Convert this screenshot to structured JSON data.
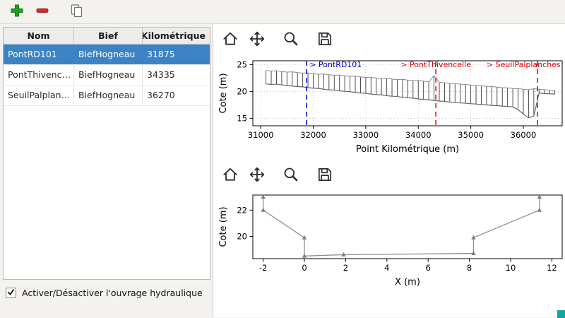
{
  "main_toolbar": {
    "buttons": [
      {
        "name": "add",
        "icon": "plus-icon",
        "color": "#1ea11e"
      },
      {
        "name": "remove",
        "icon": "minus-icon",
        "color": "#d22b2b"
      },
      {
        "name": "copy",
        "icon": "copy-icon"
      }
    ]
  },
  "table": {
    "columns": [
      "Nom",
      "Bief",
      "Point Kilométrique"
    ],
    "rows": [
      {
        "nom": "PontRD101",
        "bief": "BiefHogneau",
        "pk": "31875",
        "selected": true
      },
      {
        "nom": "PontThivencelle",
        "bief": "BiefHogneau",
        "pk": "34335",
        "selected": false
      },
      {
        "nom": "SeuilPalplanches",
        "bief": "BiefHogneau",
        "pk": "36270",
        "selected": false
      }
    ],
    "selection_color": "#3c83c6"
  },
  "checkbox": {
    "label": "Activer/Désactiver l'ouvrage hydraulique",
    "checked": true
  },
  "mpl_toolbar": {
    "icons": [
      "home-icon",
      "pan-icon",
      "zoom-icon",
      "save-icon"
    ]
  },
  "chart_data": [
    {
      "type": "line",
      "name": "longitudinal-profile",
      "xlabel": "Point Kilométrique (m)",
      "ylabel": "Cote (m)",
      "xlim": [
        30850,
        36740
      ],
      "ylim": [
        13.6,
        25.7
      ],
      "xticks": [
        31000,
        32000,
        33000,
        34000,
        35000,
        36000
      ],
      "yticks": [
        15,
        20,
        25
      ],
      "grid": true,
      "x": [
        31100,
        31200,
        31300,
        31400,
        31500,
        31600,
        31700,
        31800,
        31900,
        32000,
        32100,
        32200,
        32300,
        32400,
        32500,
        32600,
        32700,
        32800,
        32900,
        33000,
        33100,
        33200,
        33300,
        33400,
        33500,
        33600,
        33700,
        33800,
        33900,
        34000,
        34100,
        34200,
        34300,
        34400,
        34500,
        34600,
        34700,
        34800,
        34900,
        35000,
        35100,
        35200,
        35300,
        35400,
        35500,
        35600,
        35700,
        35800,
        35900,
        36000,
        36100,
        36200,
        36300,
        36400,
        36500,
        36600
      ],
      "top": [
        23.9,
        23.8,
        23.85,
        23.7,
        23.6,
        23.65,
        23.5,
        23.4,
        23.45,
        23.3,
        23.2,
        23.25,
        23.1,
        23.0,
        23.05,
        22.9,
        22.8,
        22.85,
        22.7,
        22.6,
        22.65,
        22.5,
        22.4,
        22.45,
        22.3,
        22.2,
        22.25,
        22.1,
        22.0,
        22.05,
        21.9,
        21.8,
        22.9,
        21.7,
        21.6,
        21.5,
        21.45,
        21.35,
        21.3,
        21.2,
        21.1,
        21.05,
        20.95,
        20.9,
        20.8,
        20.7,
        20.65,
        20.55,
        20.5,
        20.4,
        20.3,
        20.5,
        20.4,
        20.3,
        20.25,
        20.2
      ],
      "bottom": [
        21.4,
        21.3,
        21.35,
        21.2,
        21.1,
        21.0,
        20.9,
        20.85,
        20.7,
        20.6,
        20.55,
        20.4,
        20.3,
        20.25,
        20.1,
        20.0,
        19.95,
        19.8,
        19.7,
        19.65,
        19.5,
        19.4,
        19.35,
        19.2,
        19.1,
        19.05,
        18.9,
        18.8,
        18.75,
        18.6,
        18.5,
        18.45,
        18.3,
        18.2,
        18.15,
        18.0,
        17.95,
        17.85,
        17.8,
        17.7,
        17.65,
        17.55,
        17.5,
        17.4,
        17.35,
        17.25,
        17.2,
        17.1,
        16.6,
        15.8,
        15.1,
        15.4,
        19.7,
        19.6,
        19.55,
        19.5
      ],
      "annotations": [
        {
          "label": "> PontRD101",
          "x": 31875,
          "color": "#0000dd",
          "style": "dashed",
          "ha": "left"
        },
        {
          "label": "> PontThivencelle",
          "x": 34335,
          "color": "#e00000",
          "style": "dashed",
          "ha": "center"
        },
        {
          "label": "> SeuilPalplanches",
          "x": 36270,
          "color": "#e00000",
          "style": "dashed",
          "ha": "center"
        }
      ]
    },
    {
      "type": "line",
      "name": "cross-section",
      "xlabel": "X (m)",
      "ylabel": "Cote (m)",
      "xlim": [
        -2.5,
        12.5
      ],
      "ylim": [
        18.3,
        23.15
      ],
      "xticks": [
        -2,
        0,
        2,
        4,
        6,
        8,
        10,
        12
      ],
      "yticks": [
        20,
        22
      ],
      "grid": false,
      "x": [
        -2,
        -2,
        0,
        0,
        1.9,
        8.2,
        8.2,
        11.4,
        11.4
      ],
      "y": [
        23,
        22,
        19.9,
        18.5,
        18.6,
        18.7,
        19.9,
        22,
        23
      ],
      "line_color": "#909090",
      "marker": "caret"
    }
  ]
}
